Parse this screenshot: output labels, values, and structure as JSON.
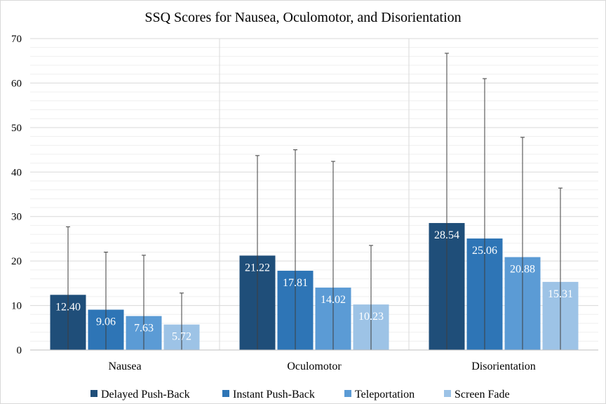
{
  "chart_data": {
    "type": "bar",
    "title": "SSQ Scores for Nausea, Oculomotor, and Disorientation",
    "xlabel": "",
    "ylabel": "",
    "ylim": [
      0,
      70
    ],
    "y_ticks": [
      0,
      10,
      20,
      30,
      40,
      50,
      60,
      70
    ],
    "grid": "horizontal",
    "legend_position": "bottom",
    "error_bars": true,
    "categories": [
      "Nausea",
      "Oculomotor",
      "Disorientation"
    ],
    "series": [
      {
        "name": "Delayed Push-Back",
        "color": "#1f4e79",
        "values": [
          12.4,
          21.22,
          28.54
        ],
        "value_labels": [
          "12.40",
          "21.22",
          "28.54"
        ],
        "error_upper": [
          27.7,
          43.7,
          66.7
        ]
      },
      {
        "name": "Instant Push-Back",
        "color": "#2e75b6",
        "values": [
          9.06,
          17.81,
          25.06
        ],
        "value_labels": [
          "9.06",
          "17.81",
          "25.06"
        ],
        "error_upper": [
          22.0,
          45.0,
          61.0
        ]
      },
      {
        "name": "Teleportation",
        "color": "#5b9bd5",
        "values": [
          7.63,
          14.02,
          20.88
        ],
        "value_labels": [
          "7.63",
          "14.02",
          "20.88"
        ],
        "error_upper": [
          21.3,
          42.4,
          47.8
        ]
      },
      {
        "name": "Screen Fade",
        "color": "#9dc3e6",
        "values": [
          5.72,
          10.23,
          15.31
        ],
        "value_labels": [
          "5.72",
          "10.23",
          "15.31"
        ],
        "error_upper": [
          12.8,
          23.5,
          36.4
        ]
      }
    ]
  }
}
